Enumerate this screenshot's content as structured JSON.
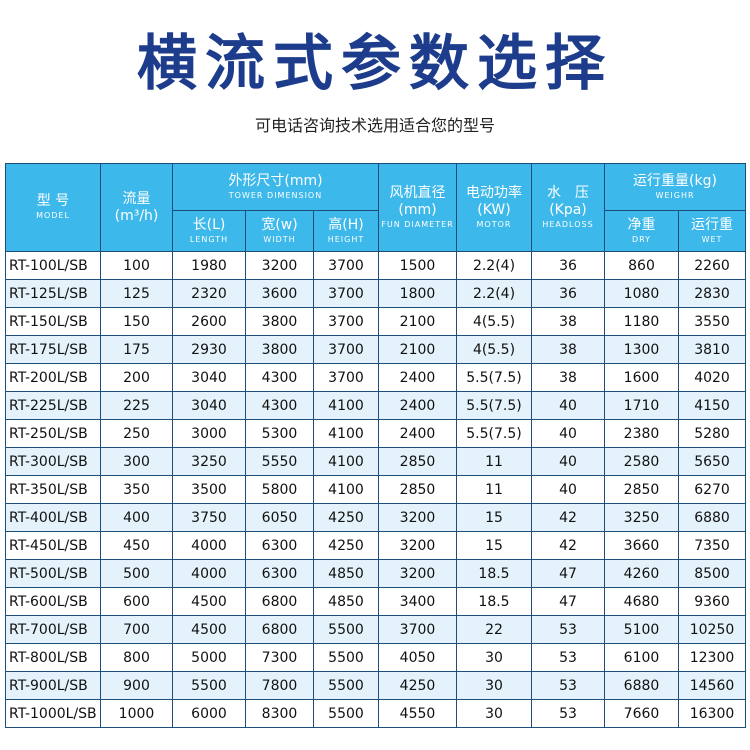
{
  "header": {
    "title": "横流式参数选择",
    "subtitle": "可电话咨询技术选用适合您的型号"
  },
  "table": {
    "columns": [
      {
        "cn": "型 号",
        "en": "MODEL"
      },
      {
        "cn": "流量",
        "unit": "(m³/h)"
      },
      {
        "cn": "外形尺寸(mm)",
        "en": "TOWER DIMENSION",
        "sub": [
          {
            "cn": "长(L)",
            "en": "LENGTH"
          },
          {
            "cn": "宽(w)",
            "en": "WIDTH"
          },
          {
            "cn": "高(H)",
            "en": "HEIGHT"
          }
        ]
      },
      {
        "cn": "风机直径",
        "unit": "(mm)",
        "en": "FUN DIAMETER"
      },
      {
        "cn": "电动功率",
        "unit": "(KW)",
        "en": "MOTOR"
      },
      {
        "cn": "水　压",
        "unit": "(Kpa)",
        "en": "HEADLOSS"
      },
      {
        "cn": "运行重量(kg)",
        "en": "WEIGHR",
        "sub": [
          {
            "cn": "净重",
            "en": "DRY"
          },
          {
            "cn": "运行重",
            "en": "WET"
          }
        ]
      }
    ],
    "rows": [
      [
        "RT-100L/SB",
        "100",
        "1980",
        "3200",
        "3700",
        "1500",
        "2.2(4)",
        "36",
        "860",
        "2260"
      ],
      [
        "RT-125L/SB",
        "125",
        "2320",
        "3600",
        "3700",
        "1800",
        "2.2(4)",
        "36",
        "1080",
        "2830"
      ],
      [
        "RT-150L/SB",
        "150",
        "2600",
        "3800",
        "3700",
        "2100",
        "4(5.5)",
        "38",
        "1180",
        "3550"
      ],
      [
        "RT-175L/SB",
        "175",
        "2930",
        "3800",
        "3700",
        "2100",
        "4(5.5)",
        "38",
        "1300",
        "3810"
      ],
      [
        "RT-200L/SB",
        "200",
        "3040",
        "4300",
        "3700",
        "2400",
        "5.5(7.5)",
        "38",
        "1600",
        "4020"
      ],
      [
        "RT-225L/SB",
        "225",
        "3040",
        "4300",
        "4100",
        "2400",
        "5.5(7.5)",
        "40",
        "1710",
        "4150"
      ],
      [
        "RT-250L/SB",
        "250",
        "3000",
        "5300",
        "4100",
        "2400",
        "5.5(7.5)",
        "40",
        "2380",
        "5280"
      ],
      [
        "RT-300L/SB",
        "300",
        "3250",
        "5550",
        "4100",
        "2850",
        "11",
        "40",
        "2580",
        "5650"
      ],
      [
        "RT-350L/SB",
        "350",
        "3500",
        "5800",
        "4100",
        "2850",
        "11",
        "40",
        "2850",
        "6270"
      ],
      [
        "RT-400L/SB",
        "400",
        "3750",
        "6050",
        "4250",
        "3200",
        "15",
        "42",
        "3250",
        "6880"
      ],
      [
        "RT-450L/SB",
        "450",
        "4000",
        "6300",
        "4250",
        "3200",
        "15",
        "42",
        "3660",
        "7350"
      ],
      [
        "RT-500L/SB",
        "500",
        "4000",
        "6300",
        "4850",
        "3200",
        "18.5",
        "47",
        "4260",
        "8500"
      ],
      [
        "RT-600L/SB",
        "600",
        "4500",
        "6800",
        "4850",
        "3400",
        "18.5",
        "47",
        "4680",
        "9360"
      ],
      [
        "RT-700L/SB",
        "700",
        "4500",
        "6800",
        "5500",
        "3700",
        "22",
        "53",
        "5100",
        "10250"
      ],
      [
        "RT-800L/SB",
        "800",
        "5000",
        "7300",
        "5500",
        "4050",
        "30",
        "53",
        "6100",
        "12300"
      ],
      [
        "RT-900L/SB",
        "900",
        "5500",
        "7800",
        "5500",
        "4250",
        "30",
        "53",
        "6880",
        "14560"
      ],
      [
        "RT-1000L/SB",
        "1000",
        "6000",
        "8300",
        "5500",
        "4550",
        "30",
        "53",
        "7660",
        "16300"
      ]
    ]
  }
}
